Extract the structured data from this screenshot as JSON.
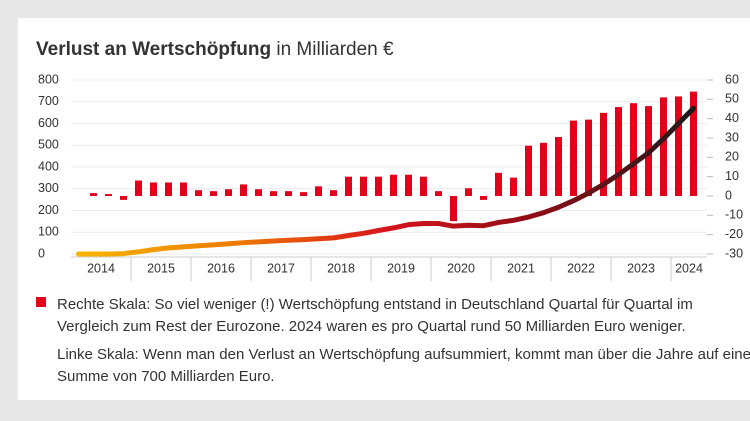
{
  "chart_data": {
    "type": "bar",
    "title": "Verlust an Wertschöpfung",
    "subtitle": "in Milliarden €",
    "xlim": [
      2014,
      2024.6
    ],
    "xticks": [
      {
        "value": 2014.5,
        "label": "2014"
      },
      {
        "value": 2015.5,
        "label": "2015"
      },
      {
        "value": 2016.5,
        "label": "2016"
      },
      {
        "value": 2017.5,
        "label": "2017"
      },
      {
        "value": 2018.5,
        "label": "2018"
      },
      {
        "value": 2019.5,
        "label": "2019"
      },
      {
        "value": 2020.5,
        "label": "2020"
      },
      {
        "value": 2021.5,
        "label": "2021"
      },
      {
        "value": 2022.5,
        "label": "2022"
      },
      {
        "value": 2023.5,
        "label": "2023"
      },
      {
        "value": 2024.3,
        "label": "2024"
      }
    ],
    "ylim": [
      0,
      800
    ],
    "yticks": [
      0,
      100,
      200,
      300,
      400,
      500,
      600,
      700,
      800
    ],
    "y2lim": [
      -30,
      60
    ],
    "y2ticks": [
      -30,
      -20,
      -10,
      0,
      10,
      20,
      30,
      40,
      50,
      60
    ],
    "grid": true,
    "series": [
      {
        "name": "Rechte Skala: So viel weniger (!) Wertschöpfung entstand in Deutschland Quartal für Quartal im Vergleich zum Rest der Eurozone. 2024 waren es pro Quartal rund 50 Milliarden Euro weniger.",
        "type": "bar",
        "axis": "y2",
        "color": "#e2001a",
        "x": [
          2014.375,
          2014.625,
          2014.875,
          2015.125,
          2015.375,
          2015.625,
          2015.875,
          2016.125,
          2016.375,
          2016.625,
          2016.875,
          2017.125,
          2017.375,
          2017.625,
          2017.875,
          2018.125,
          2018.375,
          2018.625,
          2018.875,
          2019.125,
          2019.375,
          2019.625,
          2019.875,
          2020.125,
          2020.375,
          2020.625,
          2020.875,
          2021.125,
          2021.375,
          2021.625,
          2021.875,
          2022.125,
          2022.375,
          2022.625,
          2022.875,
          2023.125,
          2023.375,
          2023.625,
          2023.875,
          2024.125,
          2024.375
        ],
        "values": [
          1.5,
          1,
          -2,
          8,
          7,
          7,
          7,
          3,
          2.5,
          3.5,
          6,
          3.5,
          2.5,
          2.5,
          2,
          5,
          3,
          10,
          10,
          10,
          11,
          11,
          10,
          2.5,
          -13,
          4,
          -2,
          12,
          9.5,
          26,
          27.5,
          30.5,
          39,
          39.5,
          43,
          46,
          48,
          46.5,
          51,
          51.5,
          54
        ]
      },
      {
        "name": "Linke Skala: Wenn man den Verlust an Wertschöpfung aufsummiert, kommt man über die Jahre auf eine Summe von 700 Milliarden Euro.",
        "type": "line",
        "axis": "y",
        "colors": [
          "#f7b500",
          "#ef7d00",
          "#d7141d",
          "#8c0d16",
          "#1a1a1a"
        ],
        "x": [
          2014.125,
          2014.375,
          2014.625,
          2014.875,
          2015.125,
          2015.375,
          2015.625,
          2015.875,
          2016.125,
          2016.375,
          2016.625,
          2016.875,
          2017.125,
          2017.375,
          2017.625,
          2017.875,
          2018.125,
          2018.375,
          2018.625,
          2018.875,
          2019.125,
          2019.375,
          2019.625,
          2019.875,
          2020.125,
          2020.375,
          2020.625,
          2020.875,
          2021.125,
          2021.375,
          2021.625,
          2021.875,
          2022.125,
          2022.375,
          2022.625,
          2022.875,
          2023.125,
          2023.375,
          2023.625,
          2023.875,
          2024.125,
          2024.375
        ],
        "values": [
          0,
          0,
          0,
          2,
          10,
          20,
          28,
          33,
          38,
          42,
          47,
          52,
          56,
          60,
          63,
          66,
          70,
          74,
          85,
          95,
          108,
          120,
          135,
          140,
          140,
          128,
          132,
          130,
          145,
          155,
          170,
          190,
          215,
          245,
          280,
          320,
          365,
          415,
          465,
          530,
          600,
          670
        ]
      }
    ]
  }
}
